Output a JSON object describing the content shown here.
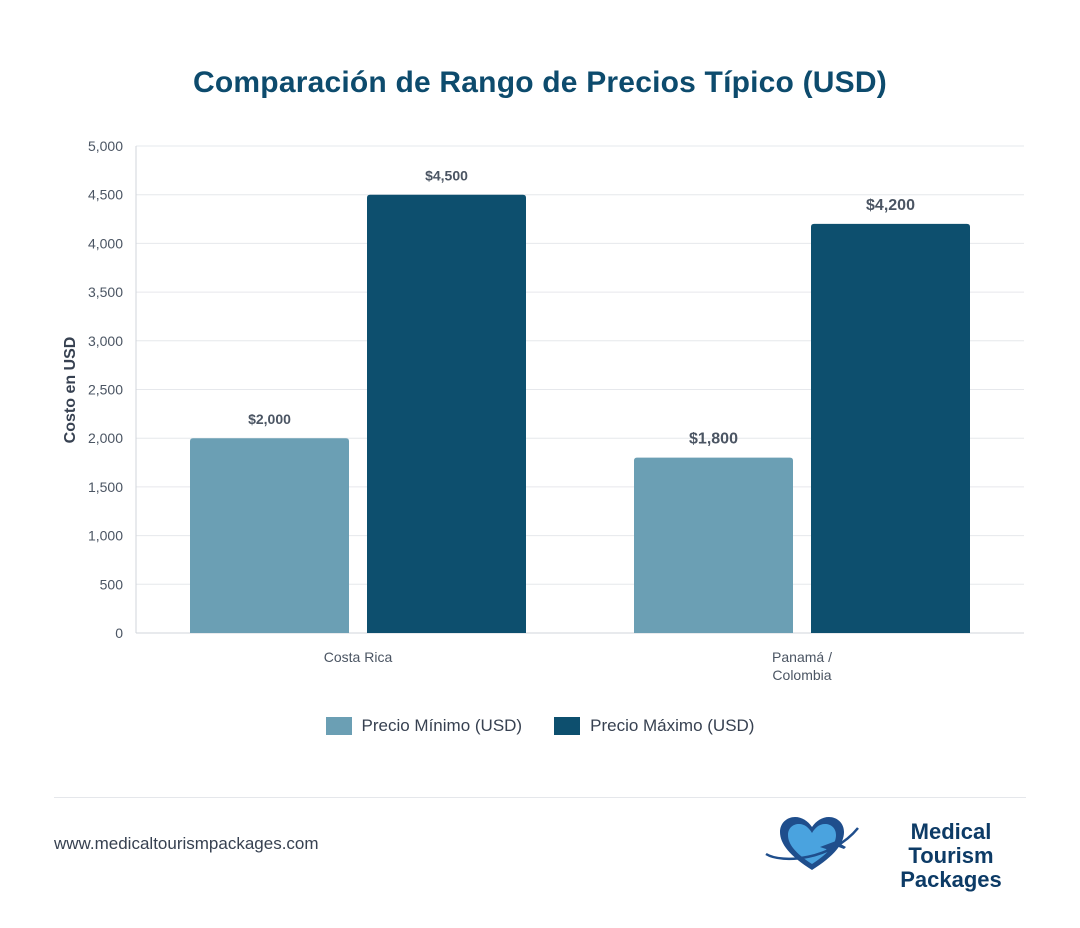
{
  "chart_data": {
    "type": "bar",
    "title": "Comparación de Rango de Precios Típico (USD)",
    "xlabel": "",
    "ylabel": "Costo en USD",
    "categories": [
      [
        "Costa Rica"
      ],
      [
        "Panamá /",
        "Colombia"
      ]
    ],
    "series": [
      {
        "name": "Precio Mínimo (USD)",
        "values": [
          2000,
          1800
        ],
        "labels": [
          "$2,000",
          "$1,800"
        ],
        "color": "#6b9fb4"
      },
      {
        "name": "Precio Máximo (USD)",
        "values": [
          4500,
          4200
        ],
        "labels": [
          "$4,500",
          "$4,200"
        ],
        "color": "#0d4f6e"
      }
    ],
    "ylim": [
      0,
      5000
    ],
    "yticks": [
      0,
      500,
      1000,
      1500,
      2000,
      2500,
      3000,
      3500,
      4000,
      4500,
      5000
    ],
    "ytick_labels": [
      "0",
      "500",
      "1,000",
      "1,500",
      "2,000",
      "2,500",
      "3,000",
      "3,500",
      "4,000",
      "4,500",
      "5,000"
    ],
    "grid": true,
    "legend_position": "bottom-center"
  },
  "footer": {
    "url": "www.medicaltourismpackages.com",
    "logo_line1": "Medical Tourism",
    "logo_line2": "Packages"
  },
  "colors": {
    "title": "#0d4b6d",
    "logo_heart_dark": "#1f4e8c",
    "logo_heart_light": "#4aa3df"
  }
}
